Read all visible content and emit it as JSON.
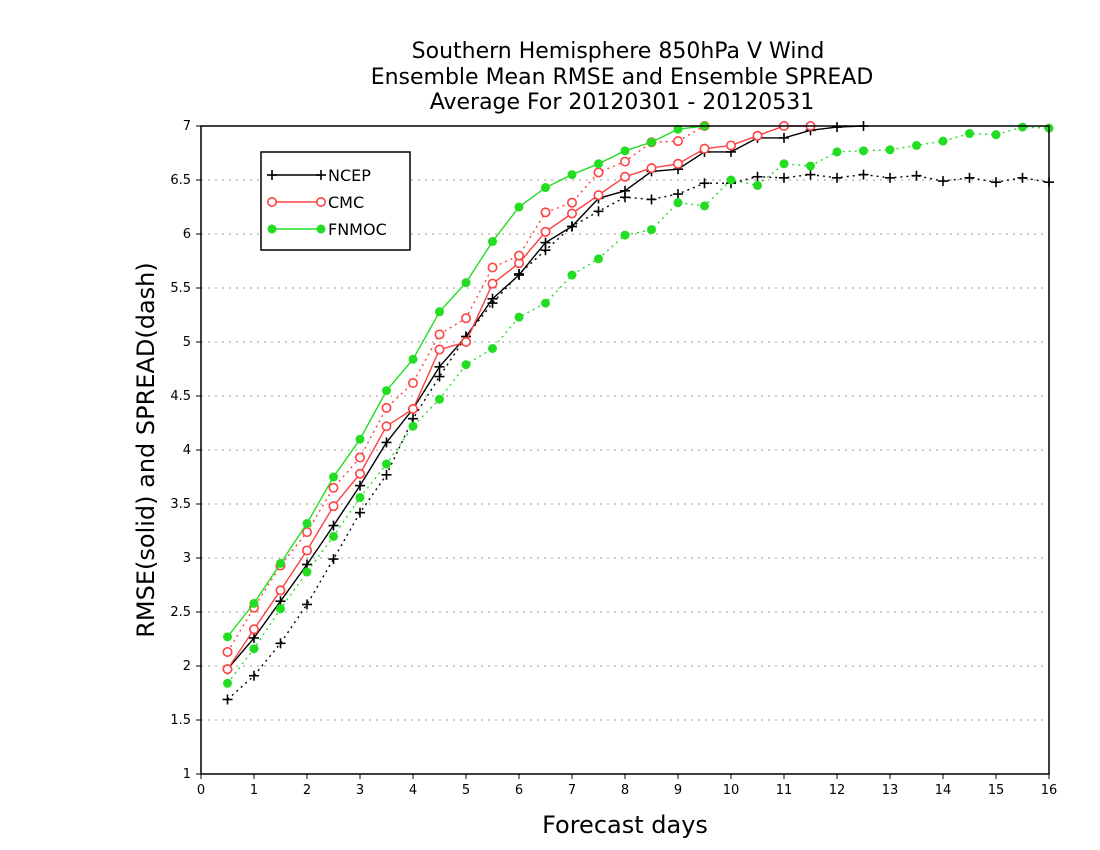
{
  "chart_data": {
    "type": "line",
    "title": [
      "Southern Hemisphere 850hPa V Wind",
      "Ensemble Mean RMSE and Ensemble SPREAD",
      "Average For 20120301 - 20120531"
    ],
    "xlabel": "Forecast days",
    "ylabel": "RMSE(solid)  and  SPREAD(dash)",
    "xlim": [
      0,
      16
    ],
    "ylim": [
      1,
      7
    ],
    "xticks": [
      0,
      1,
      2,
      3,
      4,
      5,
      6,
      7,
      8,
      9,
      10,
      11,
      12,
      13,
      14,
      15,
      16
    ],
    "yticks": [
      1,
      1.5,
      2,
      2.5,
      3,
      3.5,
      4,
      4.5,
      5,
      5.5,
      6,
      6.5,
      7
    ],
    "ygrid": true,
    "legend_position": "top-left",
    "legend": [
      "NCEP",
      "CMC",
      "FNMOC"
    ],
    "series": [
      {
        "name": "NCEP",
        "style": "solid",
        "marker": "plus",
        "color": "#000000",
        "x": [
          0.5,
          1,
          1.5,
          2,
          2.5,
          3,
          3.5,
          4,
          4.5,
          5,
          5.5,
          6,
          6.5,
          7,
          7.5,
          8,
          8.5,
          9,
          9.5,
          10,
          10.5,
          11,
          11.5,
          12,
          12.5
        ],
        "y": [
          1.97,
          2.26,
          2.6,
          2.94,
          3.3,
          3.67,
          4.07,
          4.38,
          4.77,
          5.05,
          5.4,
          5.62,
          5.92,
          6.07,
          6.33,
          6.4,
          6.58,
          6.6,
          6.76,
          6.76,
          6.89,
          6.89,
          6.96,
          6.99,
          7.0
        ]
      },
      {
        "name": "NCEP",
        "style": "dash",
        "marker": "plus",
        "color": "#000000",
        "x": [
          0.5,
          1,
          1.5,
          2,
          2.5,
          3,
          3.5,
          4,
          4.5,
          5,
          5.5,
          6,
          6.5,
          7,
          7.5,
          8,
          8.5,
          9,
          9.5,
          10,
          10.5,
          11,
          11.5,
          12,
          12.5,
          13,
          13.5,
          14,
          14.5,
          15,
          15.5,
          16
        ],
        "y": [
          1.69,
          1.91,
          2.21,
          2.57,
          2.99,
          3.42,
          3.77,
          4.29,
          4.68,
          5.05,
          5.36,
          5.63,
          5.85,
          6.07,
          6.21,
          6.34,
          6.32,
          6.37,
          6.47,
          6.47,
          6.53,
          6.52,
          6.55,
          6.52,
          6.55,
          6.52,
          6.54,
          6.49,
          6.52,
          6.48,
          6.52,
          6.48
        ]
      },
      {
        "name": "CMC",
        "style": "solid",
        "marker": "open-circle",
        "color": "#ff4040",
        "x": [
          0.5,
          1,
          1.5,
          2,
          2.5,
          3,
          3.5,
          4,
          4.5,
          5,
          5.5,
          6,
          6.5,
          7,
          7.5,
          8,
          8.5,
          9,
          9.5,
          10,
          10.5,
          11,
          11.5
        ],
        "y": [
          1.97,
          2.34,
          2.7,
          3.07,
          3.48,
          3.78,
          4.22,
          4.38,
          4.93,
          5.0,
          5.54,
          5.73,
          6.02,
          6.19,
          6.36,
          6.53,
          6.61,
          6.65,
          6.79,
          6.82,
          6.91,
          7.0,
          7.0
        ]
      },
      {
        "name": "CMC",
        "style": "dash",
        "marker": "open-circle",
        "color": "#ff4040",
        "x": [
          0.5,
          1,
          1.5,
          2,
          2.5,
          3,
          3.5,
          4,
          4.5,
          5,
          5.5,
          6,
          6.5,
          7,
          7.5,
          8,
          8.5,
          9,
          9.5
        ],
        "y": [
          2.13,
          2.54,
          2.93,
          3.24,
          3.65,
          3.93,
          4.39,
          4.62,
          5.07,
          5.22,
          5.69,
          5.8,
          6.2,
          6.29,
          6.57,
          6.67,
          6.85,
          6.86,
          7.0
        ]
      },
      {
        "name": "FNMOC",
        "style": "solid",
        "marker": "filled-circle",
        "color": "#22dd22",
        "x": [
          0.5,
          1,
          1.5,
          2,
          2.5,
          3,
          3.5,
          4,
          4.5,
          5,
          5.5,
          6,
          6.5,
          7,
          7.5,
          8,
          8.5,
          9,
          9.5
        ],
        "y": [
          2.27,
          2.58,
          2.95,
          3.32,
          3.75,
          4.1,
          4.55,
          4.84,
          5.28,
          5.55,
          5.93,
          6.25,
          6.43,
          6.55,
          6.65,
          6.77,
          6.85,
          6.97,
          7.0
        ]
      },
      {
        "name": "FNMOC",
        "style": "dash",
        "marker": "filled-circle",
        "color": "#22dd22",
        "x": [
          0.5,
          1,
          1.5,
          2,
          2.5,
          3,
          3.5,
          4,
          4.5,
          5,
          5.5,
          6,
          6.5,
          7,
          7.5,
          8,
          8.5,
          9,
          9.5,
          10,
          10.5,
          11,
          11.5,
          12,
          12.5,
          13,
          13.5,
          14,
          14.5,
          15,
          15.5,
          16
        ],
        "y": [
          1.84,
          2.16,
          2.53,
          2.87,
          3.2,
          3.56,
          3.87,
          4.22,
          4.47,
          4.79,
          4.94,
          5.23,
          5.36,
          5.62,
          5.77,
          5.99,
          6.04,
          6.29,
          6.26,
          6.5,
          6.45,
          6.65,
          6.63,
          6.76,
          6.77,
          6.78,
          6.82,
          6.86,
          6.93,
          6.92,
          6.99,
          6.98
        ]
      }
    ]
  }
}
